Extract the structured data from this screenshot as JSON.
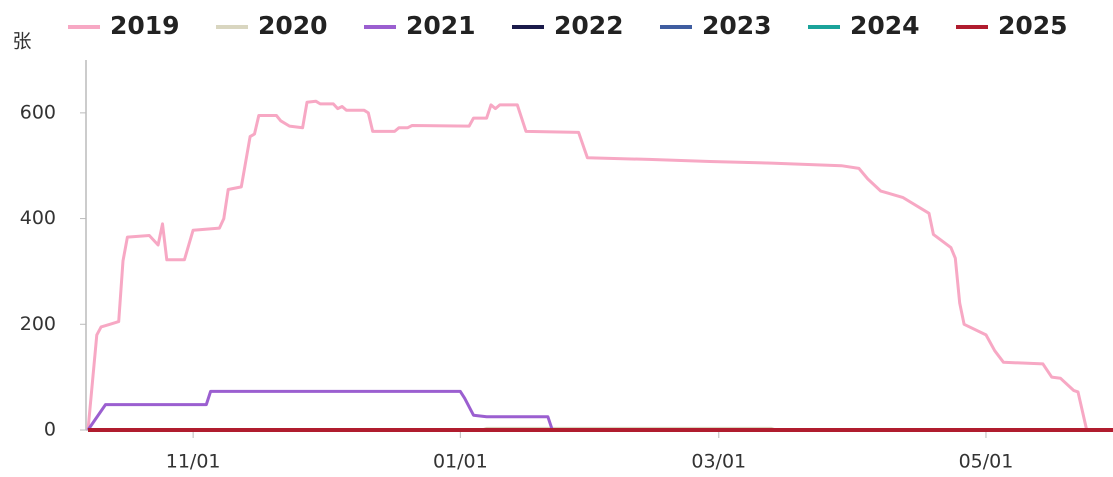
{
  "chart_data": {
    "type": "line",
    "y_label": "张",
    "xlim": [
      "10/08",
      "05/30"
    ],
    "xticks": [
      "11/01",
      "01/01",
      "03/01",
      "05/01"
    ],
    "ylim": [
      0,
      700
    ],
    "yticks": [
      0,
      200,
      400,
      600
    ],
    "series": [
      {
        "name": "2019",
        "color": "#f7a8c4",
        "x": [
          "10/08",
          "10/10",
          "10/11",
          "10/13",
          "10/15",
          "10/16",
          "10/17",
          "10/22",
          "10/24",
          "10/25",
          "10/26",
          "10/30",
          "11/01",
          "11/07",
          "11/08",
          "11/09",
          "11/12",
          "11/14",
          "11/15",
          "11/16",
          "11/20",
          "11/21",
          "11/23",
          "11/26",
          "11/27",
          "11/29",
          "11/30",
          "12/03",
          "12/04",
          "12/05",
          "12/06",
          "12/10",
          "12/11",
          "12/12",
          "12/17",
          "12/18",
          "12/20",
          "12/21",
          "01/03",
          "01/04",
          "01/07",
          "01/08",
          "01/09",
          "01/10",
          "01/14",
          "01/16",
          "01/28",
          "01/30",
          "02/13",
          "02/27",
          "03/13",
          "03/29",
          "04/02",
          "04/04",
          "04/07",
          "04/12",
          "04/18",
          "04/19",
          "04/23",
          "04/24",
          "04/25",
          "04/26",
          "05/01",
          "05/03",
          "05/05",
          "05/14",
          "05/16",
          "05/18",
          "05/21",
          "05/22",
          "05/24"
        ],
        "values": [
          0,
          180,
          195,
          200,
          205,
          320,
          365,
          368,
          350,
          390,
          322,
          322,
          378,
          382,
          400,
          455,
          460,
          555,
          560,
          595,
          595,
          585,
          575,
          572,
          620,
          622,
          617,
          617,
          608,
          612,
          605,
          605,
          600,
          565,
          565,
          572,
          572,
          576,
          575,
          590,
          590,
          615,
          608,
          615,
          615,
          565,
          563,
          515,
          512,
          508,
          505,
          500,
          495,
          475,
          452,
          440,
          410,
          370,
          345,
          325,
          240,
          200,
          180,
          150,
          128,
          125,
          100,
          98,
          75,
          72,
          0
        ]
      },
      {
        "name": "2020",
        "color": "#d9d6c0",
        "x": [
          "10/08",
          "01/06",
          "01/07",
          "03/13",
          "03/14",
          "05/30"
        ],
        "values": [
          0,
          0,
          3,
          3,
          0,
          0
        ]
      },
      {
        "name": "2021",
        "color": "#9b5fd0",
        "x": [
          "10/08",
          "10/12",
          "11/04",
          "11/05",
          "01/01",
          "01/02",
          "01/04",
          "01/07",
          "01/21",
          "01/22"
        ],
        "values": [
          0,
          48,
          48,
          73,
          73,
          60,
          28,
          25,
          25,
          0
        ]
      },
      {
        "name": "2022",
        "color": "#1a1a4a",
        "x": [
          "10/08",
          "05/30"
        ],
        "values": [
          0,
          0
        ]
      },
      {
        "name": "2023",
        "color": "#3f5da0",
        "x": [
          "10/08",
          "05/30"
        ],
        "values": [
          0,
          0
        ]
      },
      {
        "name": "2024",
        "color": "#1aa39a",
        "x": [
          "10/08",
          "05/30"
        ],
        "values": [
          0,
          0
        ]
      },
      {
        "name": "2025",
        "color": "#b01c2e",
        "x": [
          "10/08",
          "05/30"
        ],
        "values": [
          0,
          0
        ]
      }
    ]
  }
}
